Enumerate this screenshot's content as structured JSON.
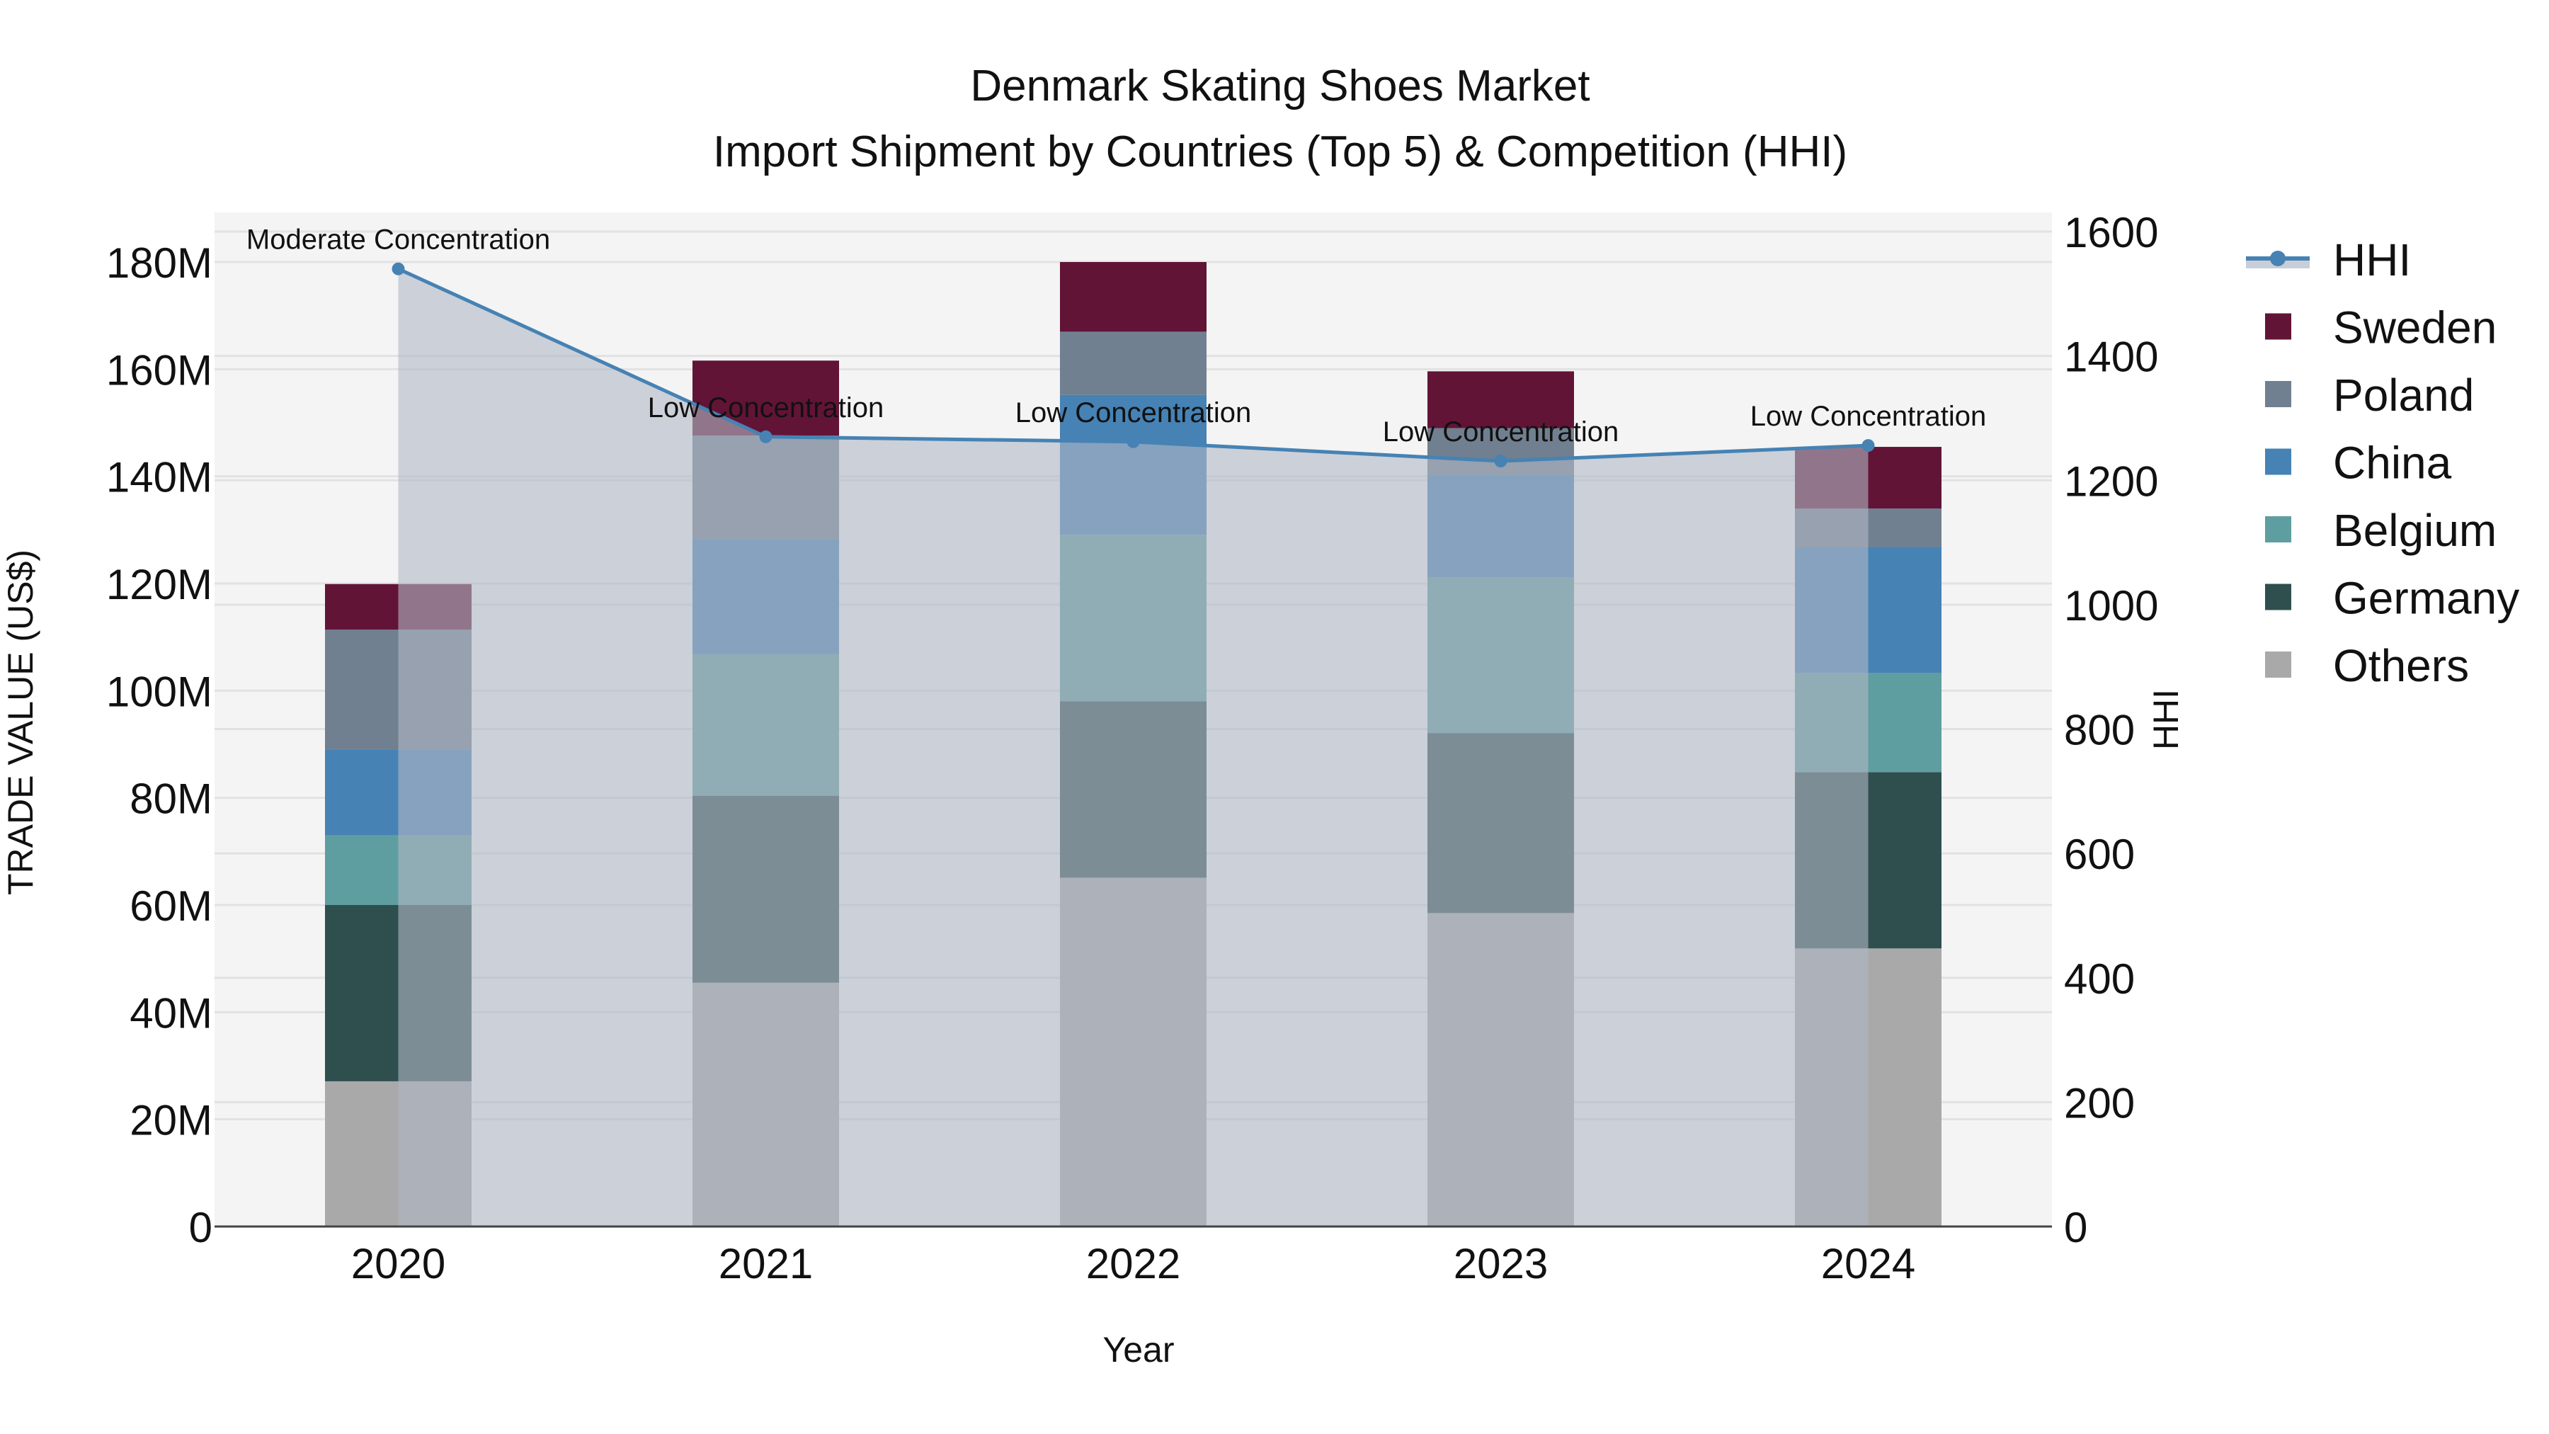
{
  "title": {
    "line1": "Denmark Skating Shoes Market",
    "line2": "Import Shipment by Countries (Top 5) & Competition (HHI)"
  },
  "axes": {
    "x_label": "Year",
    "y_left_label": "TRADE VALUE (US$)",
    "y_right_label": "HHI",
    "y_left_ticks": [
      "0",
      "20M",
      "40M",
      "60M",
      "80M",
      "100M",
      "120M",
      "140M",
      "160M",
      "180M"
    ],
    "y_right_ticks": [
      "0",
      "200",
      "400",
      "600",
      "800",
      "1000",
      "1200",
      "1400",
      "1600"
    ]
  },
  "legend": {
    "items": [
      {
        "label": "HHI",
        "type": "line",
        "color": "#4682b4"
      },
      {
        "label": "Sweden",
        "type": "bar",
        "color": "#621436"
      },
      {
        "label": "Poland",
        "type": "bar",
        "color": "#708090"
      },
      {
        "label": "China",
        "type": "bar",
        "color": "#4682b4"
      },
      {
        "label": "Belgium",
        "type": "bar",
        "color": "#5f9ea0"
      },
      {
        "label": "Germany",
        "type": "bar",
        "color": "#2f4f4f"
      },
      {
        "label": "Others",
        "type": "bar",
        "color": "#a9a9a9"
      }
    ]
  },
  "colors": {
    "plot_bg": "#f4f4f4",
    "grid": "#e2e2e2",
    "hhi_line": "#4682b4",
    "hhi_fill": "rgba(176,184,196,0.6)"
  },
  "chart_data": {
    "type": "bar",
    "title": "Denmark Skating Shoes Market — Import Shipment by Countries (Top 5) & Competition (HHI)",
    "xlabel": "Year",
    "ylabel": "TRADE VALUE (US$)",
    "y2label": "HHI",
    "categories": [
      "2020",
      "2021",
      "2022",
      "2023",
      "2024"
    ],
    "stacked": true,
    "ylim": [
      0,
      190
    ],
    "y_unit": "M US$",
    "y2lim": [
      0,
      1620
    ],
    "grid": true,
    "legend_position": "right",
    "series": [
      {
        "name": "Others",
        "color": "#a9a9a9",
        "values": [
          27.1,
          45.5,
          65.1,
          58.5,
          51.9
        ]
      },
      {
        "name": "Germany",
        "color": "#2f4f4f",
        "values": [
          32.9,
          34.9,
          32.9,
          33.6,
          32.9
        ]
      },
      {
        "name": "Belgium",
        "color": "#5f9ea0",
        "values": [
          13.0,
          26.4,
          31.1,
          29.0,
          18.5
        ]
      },
      {
        "name": "China",
        "color": "#4682b4",
        "values": [
          16.0,
          21.4,
          26.1,
          19.2,
          23.5
        ]
      },
      {
        "name": "Poland",
        "color": "#708090",
        "values": [
          22.4,
          19.4,
          11.8,
          8.7,
          7.2
        ]
      },
      {
        "name": "Sweden",
        "color": "#621436",
        "values": [
          8.5,
          14.0,
          13.0,
          10.6,
          11.5
        ]
      }
    ],
    "line_series": {
      "name": "HHI",
      "axis": "right",
      "type": "area-line",
      "color": "#4682b4",
      "values": [
        1540,
        1270,
        1262,
        1231,
        1256
      ]
    },
    "annotations": [
      {
        "x": "2020",
        "text": "Moderate Concentration"
      },
      {
        "x": "2021",
        "text": "Low Concentration"
      },
      {
        "x": "2022",
        "text": "Low Concentration"
      },
      {
        "x": "2023",
        "text": "Low Concentration"
      },
      {
        "x": "2024",
        "text": "Low Concentration"
      }
    ]
  }
}
